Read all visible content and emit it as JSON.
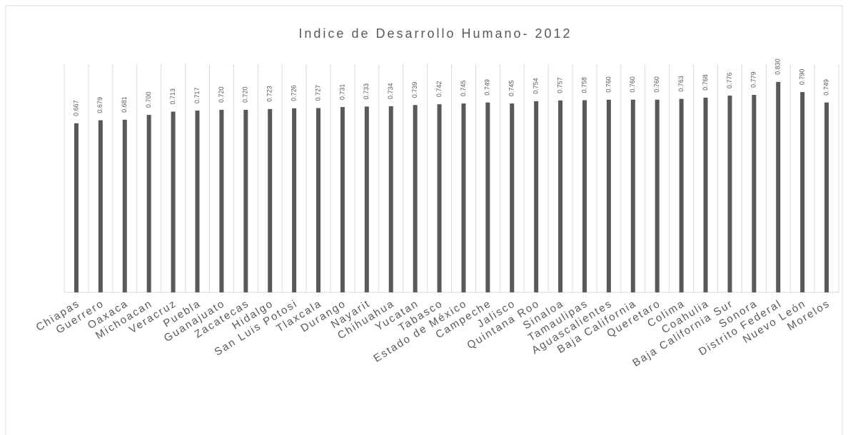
{
  "chart_data": {
    "type": "bar",
    "title": "Indice de Desarrollo Humano- 2012",
    "categories": [
      "Chiapas",
      "Guerrero",
      "Oaxaca",
      "Michoacan",
      "Veracruz",
      "Puebla",
      "Guanajuato",
      "Zacatecas",
      "Hidalgo",
      "San Luis Potosi",
      "Tlaxcala",
      "Durango",
      "Nayarit",
      "Chihuahua",
      "Yucatan",
      "Tabasco",
      "Estado de México",
      "Campeche",
      "Jalisco",
      "Quintana Roo",
      "Sinaloa",
      "Tamaulipas",
      "Aguascalientes",
      "Baja California",
      "Queretaro",
      "Colima",
      "Coahulia",
      "Baja California Sur",
      "Sonora",
      "Distrito Federal",
      "Nuevo León",
      "Morelos"
    ],
    "values": [
      0.667,
      0.679,
      0.681,
      0.7,
      0.713,
      0.717,
      0.72,
      0.72,
      0.723,
      0.726,
      0.727,
      0.731,
      0.733,
      0.734,
      0.739,
      0.742,
      0.745,
      0.749,
      0.745,
      0.754,
      0.757,
      0.758,
      0.76,
      0.76,
      0.76,
      0.763,
      0.768,
      0.776,
      0.779,
      0.83,
      0.79,
      0.749
    ],
    "value_labels": [
      "0.667",
      "0.679",
      "0.681",
      "0.700",
      "0.713",
      "0.717",
      "0.720",
      "0.720",
      "0.723",
      "0.726",
      "0.727",
      "0.731",
      "0.733",
      "0.734",
      "0.739",
      "0.742",
      "0.745",
      "0.749",
      "0.745",
      "0.754",
      "0.757",
      "0.758",
      "0.760",
      "0.760",
      "0.760",
      "0.763",
      "0.768",
      "0.776",
      "0.779",
      "0.830",
      "0.790",
      "0.749"
    ],
    "color": "#595959",
    "ylim": [
      0,
      0.9
    ],
    "grid": true
  }
}
